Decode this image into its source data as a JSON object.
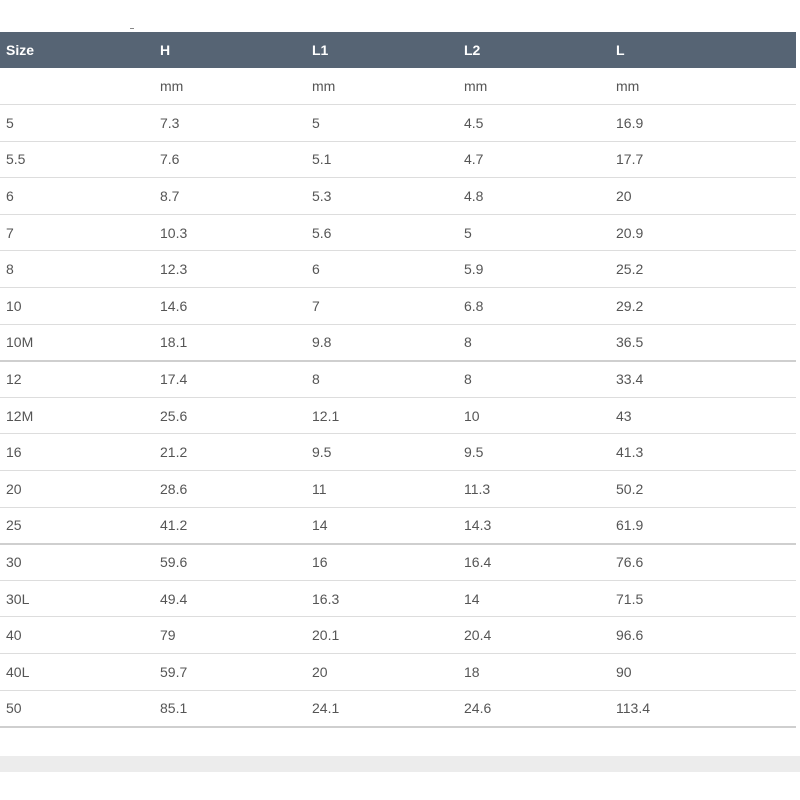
{
  "table": {
    "headers": [
      "Size",
      "H",
      "L1",
      "L2",
      "L"
    ],
    "units": [
      "",
      "mm",
      "mm",
      "mm",
      "mm"
    ],
    "rows": [
      [
        "5",
        "7.3",
        "5",
        "4.5",
        "16.9"
      ],
      [
        "5.5",
        "7.6",
        "5.1",
        "4.7",
        "17.7"
      ],
      [
        "6",
        "8.7",
        "5.3",
        "4.8",
        "20"
      ],
      [
        "7",
        "10.3",
        "5.6",
        "5",
        "20.9"
      ],
      [
        "8",
        "12.3",
        "6",
        "5.9",
        "25.2"
      ],
      [
        "10",
        "14.6",
        "7",
        "6.8",
        "29.2"
      ],
      [
        "10M",
        "18.1",
        "9.8",
        "8",
        "36.5"
      ],
      [
        "12",
        "17.4",
        "8",
        "8",
        "33.4"
      ],
      [
        "12M",
        "25.6",
        "12.1",
        "10",
        "43"
      ],
      [
        "16",
        "21.2",
        "9.5",
        "9.5",
        "41.3"
      ],
      [
        "20",
        "28.6",
        "11",
        "11.3",
        "50.2"
      ],
      [
        "25",
        "41.2",
        "14",
        "14.3",
        "61.9"
      ],
      [
        "30",
        "59.6",
        "16",
        "16.4",
        "76.6"
      ],
      [
        "30L",
        "49.4",
        "16.3",
        "14",
        "71.5"
      ],
      [
        "40",
        "79",
        "20.1",
        "20.4",
        "96.6"
      ],
      [
        "40L",
        "59.7",
        "20",
        "18",
        "90"
      ],
      [
        "50",
        "85.1",
        "24.1",
        "24.6",
        "113.4"
      ]
    ]
  },
  "colors": {
    "header_bg": "#566474",
    "header_text": "#ffffff",
    "cell_text": "#555555",
    "row_border": "#dddddd",
    "footer_band": "#ececec"
  }
}
